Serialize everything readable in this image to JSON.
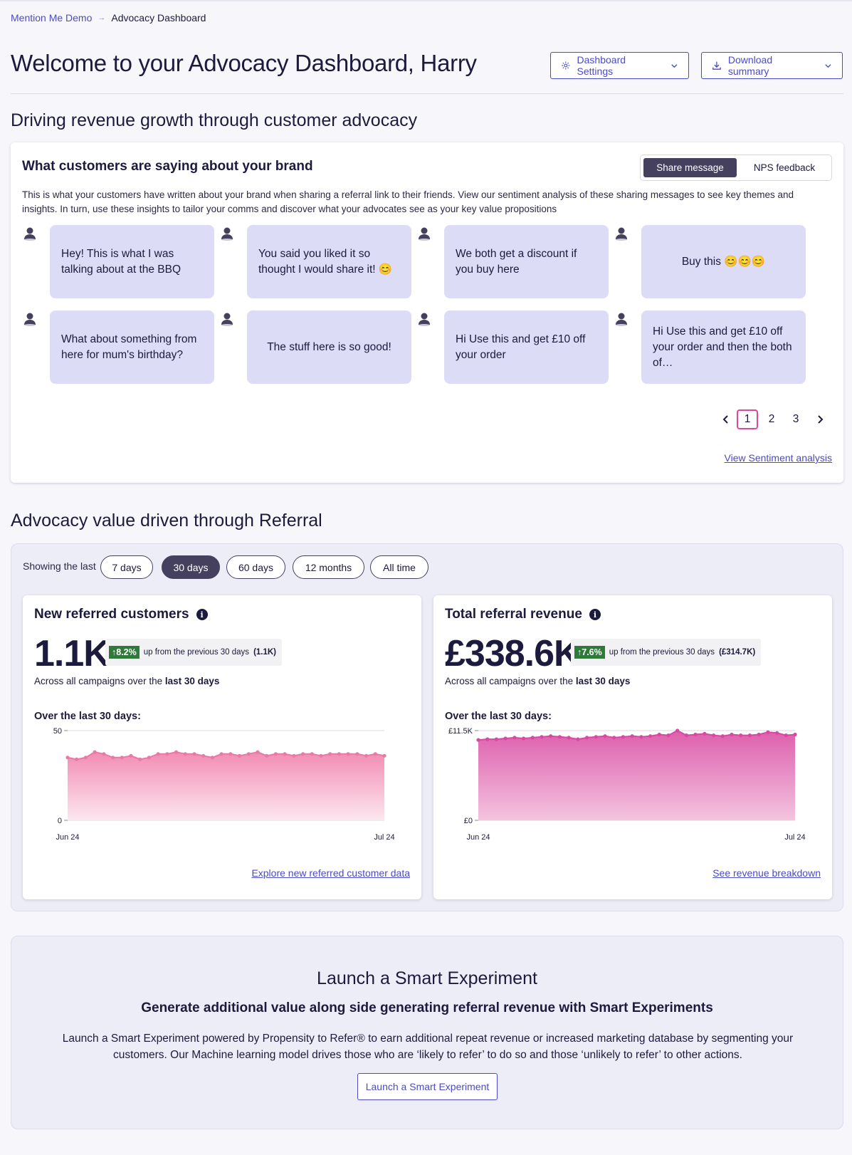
{
  "breadcrumb": {
    "root": "Mention Me Demo",
    "current": "Advocacy Dashboard"
  },
  "header": {
    "title": "Welcome to your Advocacy Dashboard, Harry",
    "settings_label": "Dashboard Settings",
    "download_label": "Download summary"
  },
  "sections": {
    "revenue_growth": "Driving revenue growth through customer advocacy",
    "referral_value": "Advocacy value driven through Referral"
  },
  "feedback": {
    "title": "What customers are saying about your brand",
    "tabs": [
      "Share message",
      "NPS feedback"
    ],
    "active_tab": "Share message",
    "description": "This is what your customers have written about your brand when sharing a referral link to their friends. View our sentiment analysis of these sharing messages to see key themes and insights. In turn, use these insights to tailor your comms and discover what your advocates see as your key value propositions",
    "messages": [
      "Hey! This is what I was talking about at the BBQ",
      "You said you liked it so thought I would share it! 😊",
      "We both get a discount if you buy here",
      "Buy this 😊😊😊",
      "What about something from here for mum's birthday?",
      "The stuff here is so good!",
      "Hi Use this and get £10 off your order",
      "Hi Use this and get £10 off your order and then the both of…"
    ],
    "pages": [
      "1",
      "2",
      "3"
    ],
    "current_page": "1",
    "sentiment_link": "View Sentiment analysis"
  },
  "filter": {
    "label": "Showing the last",
    "options": [
      "7 days",
      "30 days",
      "60 days",
      "12 months",
      "All time"
    ],
    "selected": "30 days"
  },
  "metrics": [
    {
      "title": "New referred customers",
      "value": "1.1K",
      "delta_pct": "8.2%",
      "delta_text": "up from the previous 30 days",
      "prev_value": "(1.1K)",
      "across_prefix": "Across all campaigns over the ",
      "across_bold": "last 30 days",
      "over_label": "Over the last 30 days:",
      "link": "Explore new referred customer data"
    },
    {
      "title": "Total referral revenue",
      "value": "£338.6K",
      "delta_pct": "7.6%",
      "delta_text": "up from the previous 30 days",
      "prev_value": "(£314.7K)",
      "across_prefix": "Across all campaigns over the ",
      "across_bold": "last 30 days",
      "over_label": "Over the last 30 days:",
      "link": "See revenue breakdown"
    }
  ],
  "chart_data": [
    {
      "type": "area",
      "x_start_label": "Jun 24",
      "x_end_label": "Jul 24",
      "ylim": [
        0,
        50
      ],
      "y_ticks": [
        "0",
        "50"
      ],
      "grid": true,
      "values": [
        35,
        34,
        35,
        38,
        37,
        35,
        35,
        36,
        34,
        35,
        37,
        37,
        38,
        37,
        37,
        36,
        35,
        37,
        37,
        36,
        37,
        38,
        36,
        37,
        37,
        36,
        37,
        37,
        36,
        37,
        37,
        37,
        37,
        36,
        37,
        36
      ]
    },
    {
      "type": "area",
      "x_start_label": "Jun 24",
      "x_end_label": "Jul 24",
      "ylim": [
        0,
        11500
      ],
      "y_ticks": [
        "£0",
        "£11.5K"
      ],
      "grid": true,
      "values": [
        10300,
        10400,
        10400,
        10500,
        10600,
        10500,
        10600,
        10700,
        10800,
        10700,
        10600,
        10400,
        10600,
        10700,
        10800,
        10600,
        10700,
        10800,
        10700,
        10800,
        11000,
        10900,
        11500,
        10900,
        11000,
        11100,
        10900,
        10800,
        11000,
        10900,
        10900,
        11000,
        11300,
        11200,
        10900,
        11000
      ]
    }
  ],
  "launch": {
    "title": "Launch a Smart Experiment",
    "subtitle": "Generate additional value along side generating referral revenue with Smart Experiments",
    "body": "Launch a Smart Experiment powered by Propensity to Refer® to earn additional repeat revenue or increased marketing database by segmenting your customers. Our Machine learning model drives those who are ‘likely to refer’ to do so and those ‘unlikely to refer’ to other actions.",
    "button": "Launch a Smart Experiment"
  },
  "colors": {
    "accent": "#4b4bc3",
    "dark": "#46405f",
    "bubble": "#dcdcf6",
    "chart_pink": "#e0459a",
    "positive": "#2f7a3a"
  }
}
